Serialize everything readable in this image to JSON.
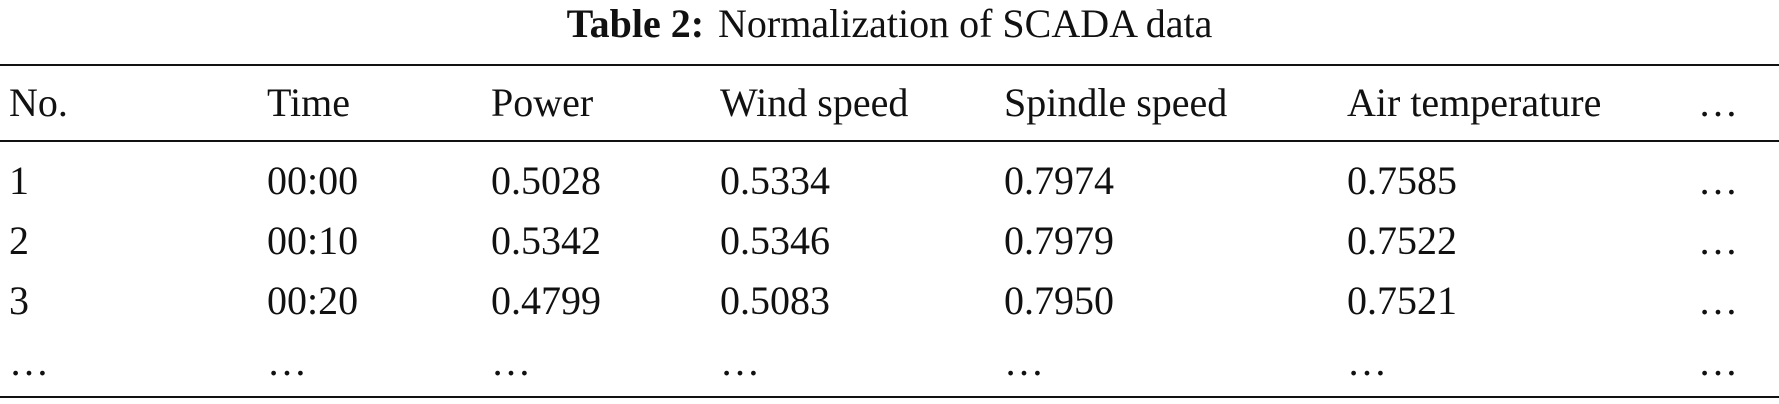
{
  "table": {
    "caption_label": "Table 2:",
    "caption": "Normalization of SCADA data",
    "header": [
      "No.",
      "Time",
      "Power",
      "Wind speed",
      "Spindle speed",
      "Air temperature",
      "…"
    ],
    "rows": [
      [
        "1",
        "00:00",
        "0.5028",
        "0.5334",
        "0.7974",
        "0.7585",
        "…"
      ],
      [
        "2",
        "00:10",
        "0.5342",
        "0.5346",
        "0.7979",
        "0.7522",
        "…"
      ],
      [
        "3",
        "00:20",
        "0.4799",
        "0.5083",
        "0.7950",
        "0.7521",
        "…"
      ],
      [
        "…",
        "…",
        "…",
        "…",
        "…",
        "…",
        "…"
      ]
    ]
  }
}
